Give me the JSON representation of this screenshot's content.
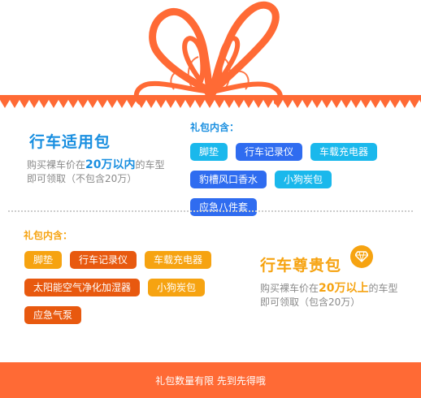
{
  "theme": {
    "orange": "#ff6a35",
    "blue": "#1a8fe0",
    "gold": "#f6a311",
    "tag_cyan": "#1ab8ec",
    "tag_blue": "#2f6cf0",
    "tag_orange": "#f6a311",
    "tag_deep_orange": "#e8590f"
  },
  "packages": [
    {
      "title": "行车适用包",
      "desc_prefix": "购买裸车价在",
      "desc_highlight": "20万以内",
      "desc_suffix": "的车型",
      "desc_line2": "即可领取（不包含20万）",
      "includes_label": "礼包内含：",
      "items": [
        {
          "label": "脚垫",
          "color": "cyan"
        },
        {
          "label": "行车记录仪",
          "color": "blue"
        },
        {
          "label": "车载充电器",
          "color": "cyan"
        },
        {
          "label": "豹槽风口香水",
          "color": "blue"
        },
        {
          "label": "小狗炭包",
          "color": "cyan"
        },
        {
          "label": "应急八件套",
          "color": "blue"
        }
      ]
    },
    {
      "title": "行车尊贵包",
      "icon": "diamond-icon",
      "desc_prefix": "购买裸车价在",
      "desc_highlight": "20万以上",
      "desc_suffix": "的车型",
      "desc_line2": "即可领取（包含20万）",
      "includes_label": "礼包内含：",
      "items": [
        {
          "label": "脚垫",
          "color": "orange"
        },
        {
          "label": "行车记录仪",
          "color": "deep"
        },
        {
          "label": "车载充电器",
          "color": "orange"
        },
        {
          "label": "太阳能空气净化加湿器",
          "color": "deep"
        },
        {
          "label": "小狗炭包",
          "color": "orange"
        },
        {
          "label": "应急气泵",
          "color": "deep"
        }
      ]
    }
  ],
  "footer": {
    "text": "礼包数量有限 先到先得哦"
  }
}
